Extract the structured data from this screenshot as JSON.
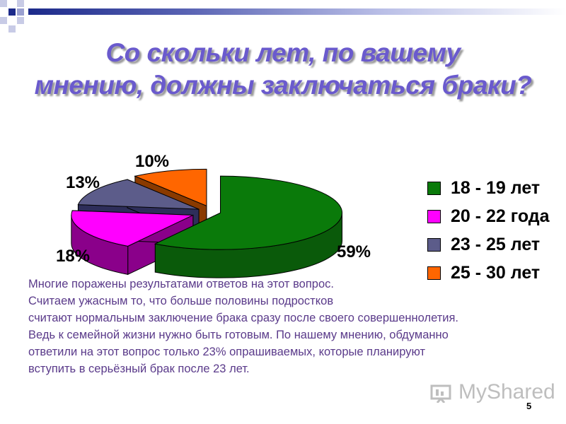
{
  "slide": {
    "title_line1": "Со скольки лет, по вашему",
    "title_line2": "мнению, должны заключаться браки?",
    "body_lines": [
      "Многие поражены результатами ответов на этот вопрос.",
      "Считаем ужасным то, что больше половины подростков",
      "считают нормальным заключение брака сразу после своего совершеннолетия.",
      "Ведь к семейной жизни нужно быть готовым. По нашему мнению, обдуманно",
      "ответили на этот вопрос только 23% опрашиваемых, которые планируют",
      "вступить в серьёзный брак после 23 лет."
    ],
    "watermark": "MyShared",
    "page_number": "5"
  },
  "chart_data": {
    "type": "pie",
    "title": "",
    "categories": [
      "18 - 19 лет",
      "20 - 22 года",
      "23 - 25 лет",
      "25 - 30 лет"
    ],
    "values": [
      59,
      18,
      13,
      10
    ],
    "labels": [
      "59%",
      "18%",
      "13%",
      "10%"
    ],
    "colors": [
      "#0a7a0a",
      "#ff00ff",
      "#5c5c8a",
      "#ff6600"
    ],
    "side_colors": [
      "#0a5a0a",
      "#8a008a",
      "#2e2e5a",
      "#8a3a00"
    ],
    "legend_position": "right",
    "style": "3d-exploded"
  }
}
